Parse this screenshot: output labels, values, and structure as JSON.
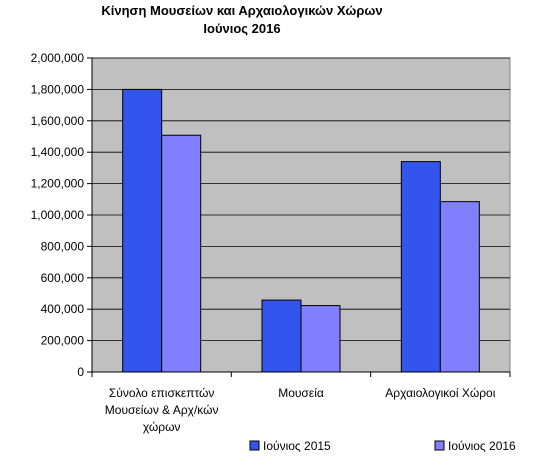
{
  "chart_data": {
    "type": "bar",
    "title": "Κίνηση Μουσείων και Αρχαιολογικών Χώρων",
    "subtitle": "Ιούνιος 2016",
    "categories": [
      [
        "Σύνολο επισκεπτών",
        "Μουσείων & Αρχ/κών",
        "χώρων"
      ],
      [
        "Μουσεία"
      ],
      [
        "Αρχαιολογικοί Χώροι"
      ]
    ],
    "series": [
      {
        "name": "Ιούνιος 2015",
        "color": "#3355ee",
        "values": [
          1800000,
          458000,
          1340000
        ]
      },
      {
        "name": "Ιούνιος 2016",
        "color": "#8080ff",
        "values": [
          1508000,
          423000,
          1085000
        ]
      }
    ],
    "ylim": [
      0,
      2000000
    ],
    "yticks": [
      "0",
      "200,000",
      "400,000",
      "600,000",
      "800,000",
      "1,000,000",
      "1,200,000",
      "1,400,000",
      "1,600,000",
      "1,800,000",
      "2,000,000"
    ],
    "grid": true,
    "legend_position": "bottom",
    "plot_background": "#c0c0c0"
  }
}
